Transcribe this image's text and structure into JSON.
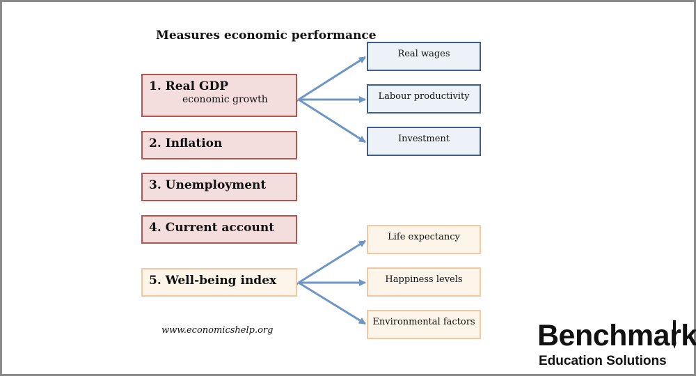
{
  "title": "Measures economic performance",
  "measures": [
    {
      "label": "1. Real GDP",
      "sub": "economic growth"
    },
    {
      "label": "2. Inflation"
    },
    {
      "label": "3. Unemployment"
    },
    {
      "label": "4. Current account"
    },
    {
      "label": "5. Well-being index"
    }
  ],
  "gdp_factors": [
    "Real wages",
    "Labour productivity",
    "Investment"
  ],
  "wellbeing_factors": [
    "Life expectancy",
    "Happiness levels",
    "Environmental factors"
  ],
  "source": "www.economicshelp.org",
  "logo": {
    "name": "Benchmark",
    "tagline": "Education Solutions"
  },
  "colors": {
    "measure_fill": "#f4dedd",
    "measure_border": "#b45650",
    "blue_fill": "#edf2f8",
    "blue_border": "#3d5e8c",
    "peach_fill": "#fdf4ea",
    "peach_border": "#f4c79e",
    "arrow": "#6d96c6"
  }
}
